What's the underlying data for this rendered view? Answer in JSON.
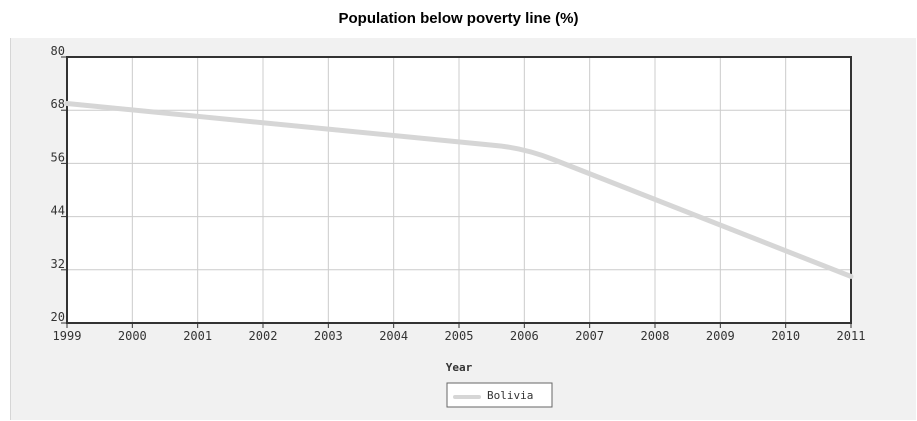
{
  "chart_data": {
    "type": "line",
    "title": "Population below poverty line (%)",
    "xlabel": "Year",
    "ylabel": "",
    "x": [
      1999,
      2000,
      2001,
      2002,
      2003,
      2004,
      2005,
      2006,
      2007,
      2008,
      2009,
      2010,
      2011
    ],
    "x_tick_labels": [
      "1999",
      "2000",
      "2001",
      "2002",
      "2003",
      "2004",
      "2005",
      "2006",
      "2007",
      "2008",
      "2009",
      "2010",
      "2011"
    ],
    "y_tick_labels": [
      "20",
      "32",
      "44",
      "56",
      "68",
      "80"
    ],
    "y_ticks": [
      20,
      32,
      44,
      56,
      68,
      80
    ],
    "ylim": [
      20,
      80
    ],
    "xlim": [
      1999,
      2011
    ],
    "grid": true,
    "legend_position": "bottom-center",
    "series": [
      {
        "name": "Bolivia",
        "color": "#d6d6d6",
        "points": [
          {
            "x": 1999,
            "y": 69.5
          },
          {
            "x": 2006,
            "y": 59.5
          },
          {
            "x": 2011,
            "y": 30.5
          }
        ]
      }
    ]
  }
}
